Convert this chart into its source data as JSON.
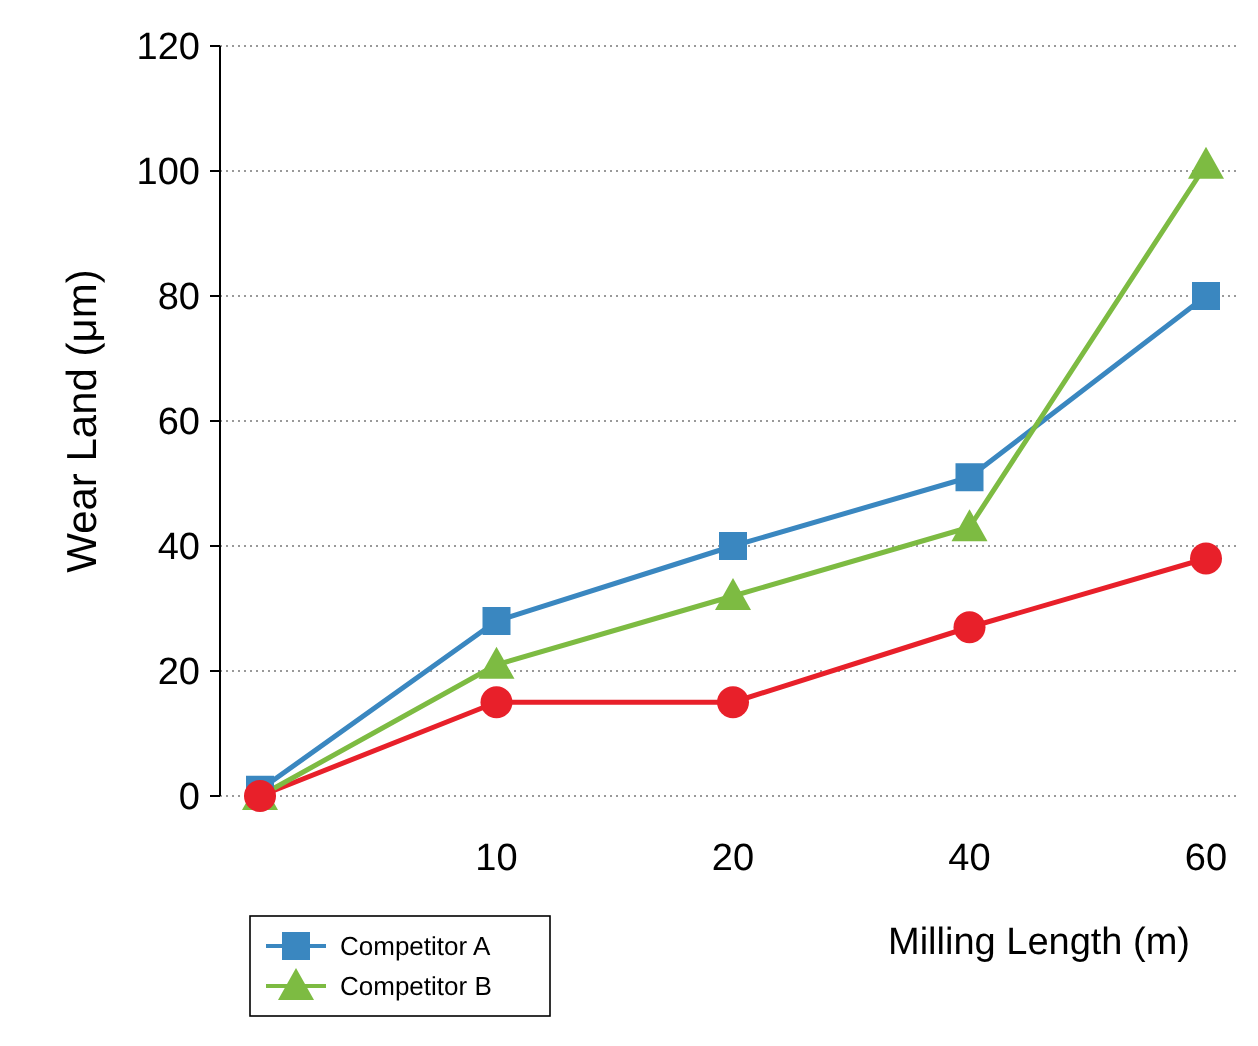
{
  "chart_data": {
    "type": "line",
    "xlabel": "Milling Length (m)",
    "ylabel": "Wear Land (μm)",
    "categories": [
      null,
      "10",
      "20",
      "40",
      "60"
    ],
    "ylim": [
      0,
      120
    ],
    "yticks": [
      0,
      20,
      40,
      60,
      80,
      100,
      120
    ],
    "grid": "y",
    "legend": "bottom left",
    "series": [
      {
        "color": "#e8202a",
        "marker": "circle",
        "values": [
          0,
          15,
          15,
          27,
          38
        ]
      },
      {
        "name": "Competitor A",
        "color": "#3a87c0",
        "marker": "square",
        "values": [
          1,
          28,
          40,
          51,
          80
        ]
      },
      {
        "name": "Competitor B",
        "color": "#7dbb42",
        "marker": "triangle",
        "values": [
          0,
          21,
          32,
          43,
          101
        ]
      }
    ]
  }
}
